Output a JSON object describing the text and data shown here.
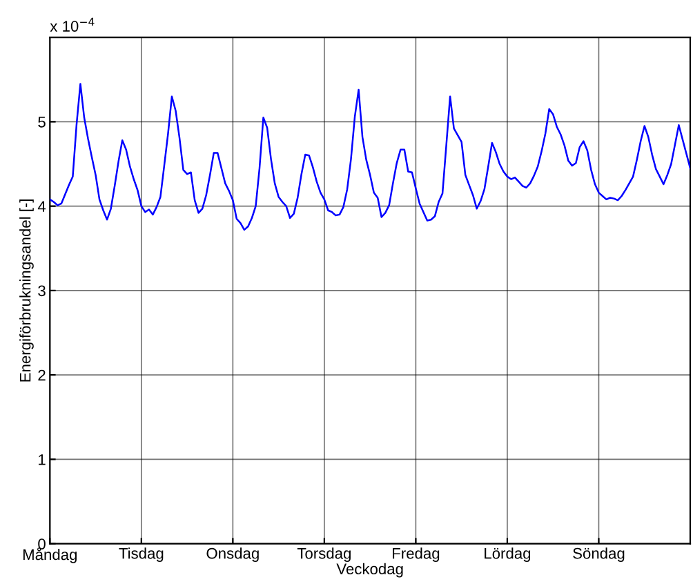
{
  "chart_data": {
    "type": "line",
    "xlabel": "Veckodag",
    "ylabel": "Energiförbrukningsandel [-]",
    "annotations": [
      "x 10$^{−4}$"
    ],
    "categories": [
      "Måndag",
      null,
      null,
      null,
      null,
      null,
      null,
      null,
      null,
      null,
      null,
      null,
      null,
      null,
      null,
      null,
      null,
      null,
      null,
      null,
      null,
      null,
      null,
      null,
      "Tisdag",
      null,
      null,
      null,
      null,
      null,
      null,
      null,
      null,
      null,
      null,
      null,
      null,
      null,
      null,
      null,
      null,
      null,
      null,
      null,
      null,
      null,
      null,
      null,
      "Onsdag",
      null,
      null,
      null,
      null,
      null,
      null,
      null,
      null,
      null,
      null,
      null,
      null,
      null,
      null,
      null,
      null,
      null,
      null,
      null,
      null,
      null,
      null,
      null,
      "Torsdag",
      null,
      null,
      null,
      null,
      null,
      null,
      null,
      null,
      null,
      null,
      null,
      null,
      null,
      null,
      null,
      null,
      null,
      null,
      null,
      null,
      null,
      null,
      null,
      "Fredag",
      null,
      null,
      null,
      null,
      null,
      null,
      null,
      null,
      null,
      null,
      null,
      null,
      null,
      null,
      null,
      null,
      null,
      null,
      null,
      null,
      null,
      null,
      null,
      "Lördag",
      null,
      null,
      null,
      null,
      null,
      null,
      null,
      null,
      null,
      null,
      null,
      null,
      null,
      null,
      null,
      null,
      null,
      null,
      null,
      null,
      null,
      null,
      null,
      "Söndag",
      null,
      null,
      null,
      null,
      null,
      null,
      null,
      null,
      null,
      null,
      null,
      null,
      null,
      null,
      null,
      null,
      null,
      null,
      null,
      null,
      null,
      null,
      null,
      null
    ],
    "series": [
      {
        "color": "#0000ff",
        "values": [
          4.08,
          4.05,
          4.01,
          4.03,
          4.14,
          4.25,
          4.35,
          4.97,
          5.45,
          5.05,
          4.8,
          4.58,
          4.37,
          4.08,
          3.95,
          3.84,
          3.97,
          4.24,
          4.53,
          4.78,
          4.67,
          4.47,
          4.32,
          4.19,
          4.0,
          3.93,
          3.96,
          3.9,
          3.99,
          4.11,
          4.48,
          4.86,
          5.3,
          5.13,
          4.81,
          4.43,
          4.38,
          4.4,
          4.07,
          3.92,
          3.97,
          4.13,
          4.37,
          4.63,
          4.63,
          4.45,
          4.27,
          4.18,
          4.07,
          3.85,
          3.8,
          3.72,
          3.76,
          3.86,
          4.0,
          4.45,
          5.05,
          4.93,
          4.56,
          4.27,
          4.11,
          4.05,
          4.0,
          3.86,
          3.91,
          4.1,
          4.38,
          4.61,
          4.6,
          4.46,
          4.29,
          4.16,
          4.08,
          3.95,
          3.93,
          3.89,
          3.9,
          3.99,
          4.2,
          4.56,
          5.06,
          5.38,
          4.82,
          4.55,
          4.37,
          4.16,
          4.1,
          3.87,
          3.92,
          4.01,
          4.27,
          4.51,
          4.67,
          4.67,
          4.41,
          4.4,
          4.21,
          4.03,
          3.93,
          3.83,
          3.84,
          3.88,
          4.05,
          4.15,
          4.72,
          5.3,
          4.92,
          4.84,
          4.76,
          4.37,
          4.25,
          4.13,
          3.97,
          4.06,
          4.2,
          4.47,
          4.75,
          4.64,
          4.5,
          4.41,
          4.35,
          4.32,
          4.34,
          4.29,
          4.24,
          4.22,
          4.27,
          4.36,
          4.47,
          4.65,
          4.86,
          5.15,
          5.09,
          4.94,
          4.85,
          4.72,
          4.54,
          4.48,
          4.51,
          4.7,
          4.77,
          4.66,
          4.43,
          4.26,
          4.16,
          4.12,
          4.08,
          4.1,
          4.09,
          4.07,
          4.12,
          4.19,
          4.27,
          4.35,
          4.55,
          4.77,
          4.95,
          4.82,
          4.61,
          4.44,
          4.35,
          4.26,
          4.37,
          4.5,
          4.73,
          4.96,
          4.79,
          4.62,
          4.45
        ]
      }
    ],
    "ylim": [
      0,
      6
    ],
    "yticks": [
      0,
      1,
      2,
      3,
      4,
      5
    ],
    "grid": true,
    "legend": false,
    "marker": "none",
    "line_style": "solid"
  }
}
